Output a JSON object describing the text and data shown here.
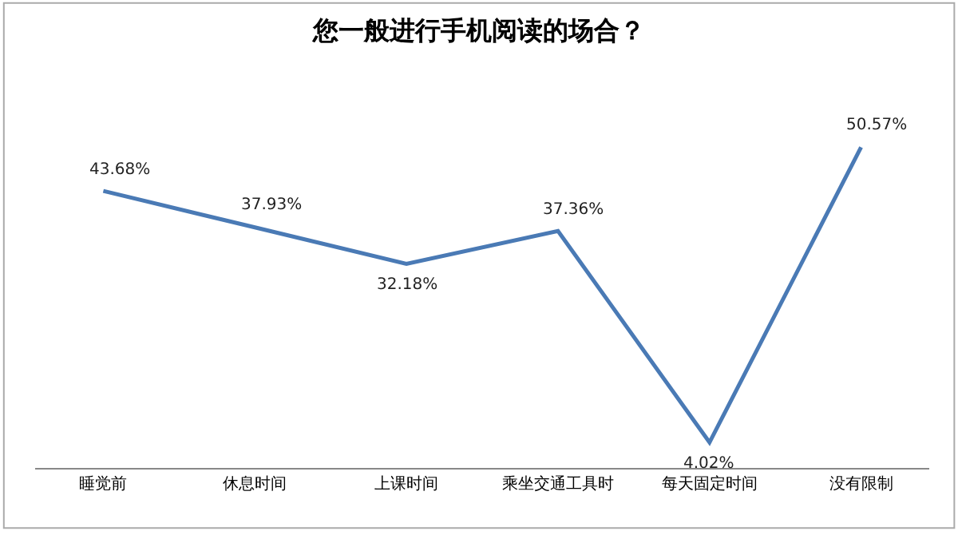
{
  "chart_data": {
    "type": "line",
    "title": "您一般进行手机阅读的场合？",
    "categories": [
      "睡觉前",
      "休息时间",
      "上课时间",
      "乘坐交通工具时",
      "每天固定时间",
      "没有限制"
    ],
    "series": [
      {
        "color": "#4a7ab5",
        "values": [
          43.68,
          37.93,
          32.18,
          37.36,
          4.02,
          50.57
        ],
        "value_labels": [
          "43.68%",
          "37.93%",
          "32.18%",
          "37.36%",
          "4.02%",
          "50.57%"
        ]
      }
    ],
    "marker": "none",
    "line_style": "solid",
    "tick_labels": "x"
  }
}
